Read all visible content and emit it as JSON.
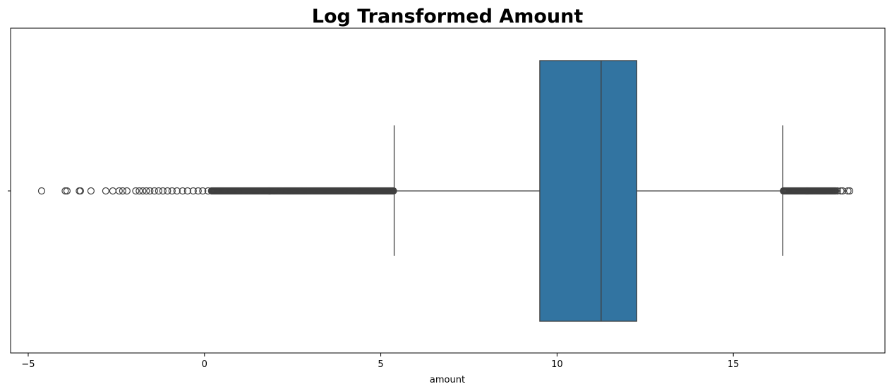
{
  "chart_data": {
    "type": "box",
    "title": "Log Transformed Amount",
    "xlabel": "amount",
    "ylabel": "",
    "xlim": [
      -5.5,
      19.3
    ],
    "x_ticks": [
      -5,
      0,
      5,
      10,
      15
    ],
    "x_tick_labels": [
      "−5",
      "0",
      "5",
      "10",
      "15"
    ],
    "orientation": "horizontal",
    "grid": false,
    "box": {
      "whisker_low": 5.38,
      "q1": 9.51,
      "median": 11.25,
      "q3": 12.26,
      "whisker_high": 16.4
    },
    "outliers_low_sparse": [
      -4.62,
      -3.95,
      -3.9,
      -3.55,
      -3.52,
      -3.22,
      -2.8,
      -2.6,
      -2.42,
      -2.32,
      -2.2,
      -1.95,
      -1.85,
      -1.75,
      -1.65,
      -1.55,
      -1.42,
      -1.3,
      -1.18,
      -1.05,
      -0.92,
      -0.78,
      -0.62,
      -0.48,
      -0.32,
      -0.18,
      -0.05,
      0.1
    ],
    "outliers_low_dense_range": [
      0.2,
      5.37
    ],
    "outliers_high_dense_range": [
      16.42,
      17.9
    ],
    "outliers_high_sparse": [
      17.95,
      18.05,
      18.1,
      18.25,
      18.3
    ],
    "colors": {
      "box_fill": "#3274a1",
      "line": "#3f3f3f",
      "outlier_edge": "#3f3f3f",
      "axes": "#000000"
    }
  }
}
